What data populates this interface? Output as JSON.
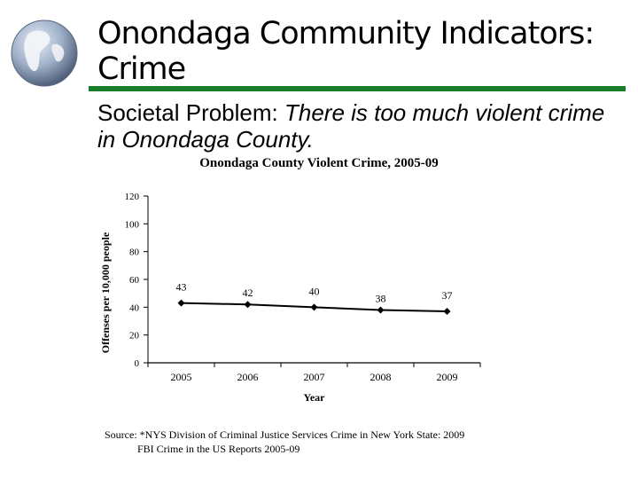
{
  "slide": {
    "title": "Onondaga Community Indicators: Crime",
    "subtitle_lead": "Societal Problem: ",
    "subtitle_emph": "There is too much violent crime in Onondaga County.",
    "rule_color": "#1a7d2a",
    "source_line1": "Source: *NYS Division of Criminal Justice Services Crime in New York State: 2009",
    "source_line2": "FBI Crime in the US Reports 2005-09"
  },
  "chart_data": {
    "type": "line",
    "title": "Onondaga County Violent Crime, 2005-09",
    "xlabel": "Year",
    "ylabel": "Offenses per 10,000 people",
    "categories": [
      "2005",
      "2006",
      "2007",
      "2008",
      "2009"
    ],
    "series": [
      {
        "values": [
          43,
          42,
          40,
          38,
          37
        ],
        "color": "#000000"
      }
    ],
    "data_labels": [
      "43",
      "42",
      "40",
      "38",
      "37"
    ],
    "ylim": [
      0,
      120
    ],
    "yticks": [
      0,
      20,
      40,
      60,
      80,
      100,
      120
    ],
    "grid": false,
    "legend": "none"
  }
}
